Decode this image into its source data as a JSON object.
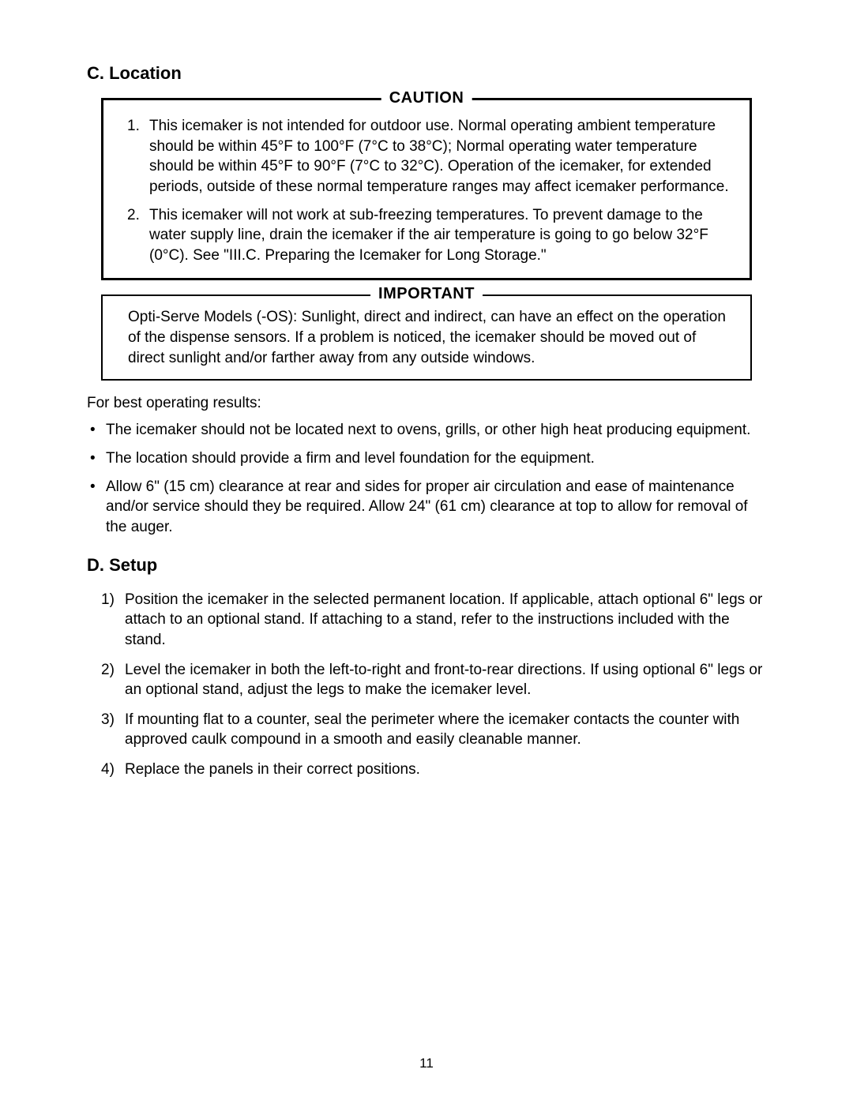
{
  "sections": {
    "location": {
      "heading": "C. Location",
      "caution": {
        "label": "CAUTION",
        "items": [
          "This icemaker is not intended for outdoor use. Normal operating ambient temperature should be within 45°F to 100°F (7°C to 38°C); Normal operating water temperature should be within 45°F to 90°F (7°C to 32°C). Operation of the icemaker, for extended periods, outside of these normal temperature ranges may affect icemaker performance.",
          "This icemaker will not work at sub-freezing temperatures. To prevent damage to the water supply line, drain the icemaker if the air temperature is going to go below 32°F (0°C). See \"III.C. Preparing the Icemaker for Long Storage.\""
        ]
      },
      "important": {
        "label": "IMPORTANT",
        "text": "Opti-Serve Models (-OS): Sunlight, direct and indirect, can have an effect on the operation of the dispense sensors. If a problem is noticed, the icemaker should be moved out of direct sunlight and/or farther away from any outside windows."
      },
      "intro": "For best operating results:",
      "bullets": [
        "The icemaker should not be located next to ovens, grills, or other high heat producing equipment.",
        "The location should provide a firm and level foundation for the equipment.",
        "Allow 6\" (15 cm) clearance at rear and sides for proper air circulation and ease of maintenance and/or service should they be required. Allow 24\" (61 cm) clearance at top to allow for removal of the auger."
      ]
    },
    "setup": {
      "heading": "D. Setup",
      "steps": [
        "Position the icemaker in the selected permanent location. If applicable, attach optional 6\" legs or attach to an optional stand. If attaching to a stand, refer to the instructions included with the stand.",
        "Level the icemaker in both the left-to-right and front-to-rear directions. If using optional 6\" legs or an optional stand, adjust the legs to make the icemaker level.",
        "If mounting flat to a counter, seal the perimeter where the icemaker contacts the counter with approved caulk compound in a smooth and easily cleanable manner.",
        "Replace the panels in their correct positions."
      ]
    }
  },
  "pageNumber": "11",
  "styling": {
    "bodyWidth": 1080,
    "bodyHeight": 1397,
    "backgroundColor": "#ffffff",
    "textColor": "#000000",
    "fontFamily": "Arial, Helvetica, sans-serif",
    "headingFontSize": 22,
    "bodyFontSize": 19,
    "calloutLabelFontSize": 20,
    "cautionBorderWidth": 3,
    "importantBorderWidth": 2,
    "lineHeight": 1.35
  }
}
